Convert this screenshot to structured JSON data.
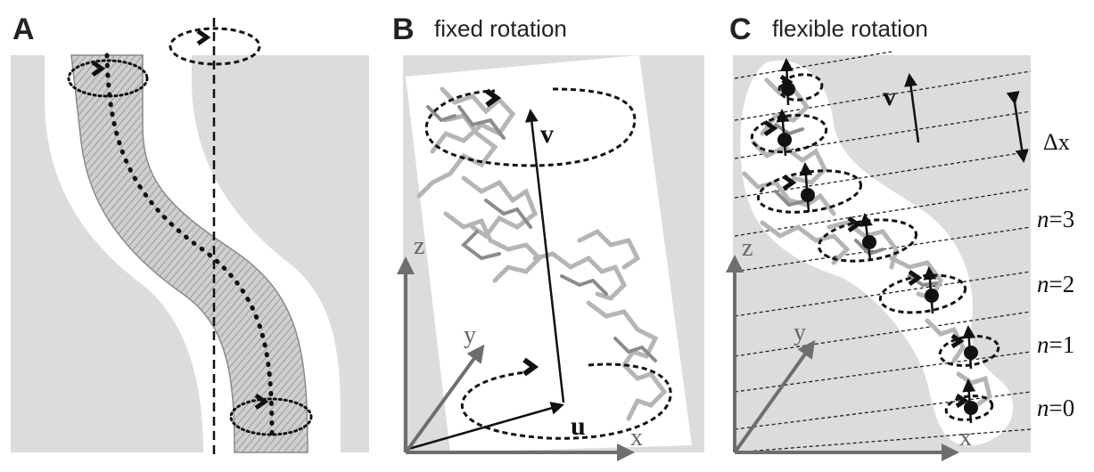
{
  "panels": {
    "a": {
      "letter": "A"
    },
    "b": {
      "letter": "B",
      "title": "fixed rotation",
      "v_label": "v",
      "u_label": "u",
      "z_label": "z",
      "y_label": "y",
      "x_label": "x"
    },
    "c": {
      "letter": "C",
      "title": "flexible rotation",
      "v_label": "v",
      "dx_label": "Δx",
      "z_label": "z",
      "y_label": "y",
      "x_label": "x",
      "n_labels": [
        {
          "var": "n",
          "rest": "=3"
        },
        {
          "var": "n",
          "rest": "=2"
        },
        {
          "var": "n",
          "rest": "=1"
        },
        {
          "var": "n",
          "rest": "=0"
        }
      ]
    }
  },
  "colors": {
    "background_gray": "#dcdcdc",
    "axis_gray": "#6e6e6e",
    "ink": "#111111"
  }
}
